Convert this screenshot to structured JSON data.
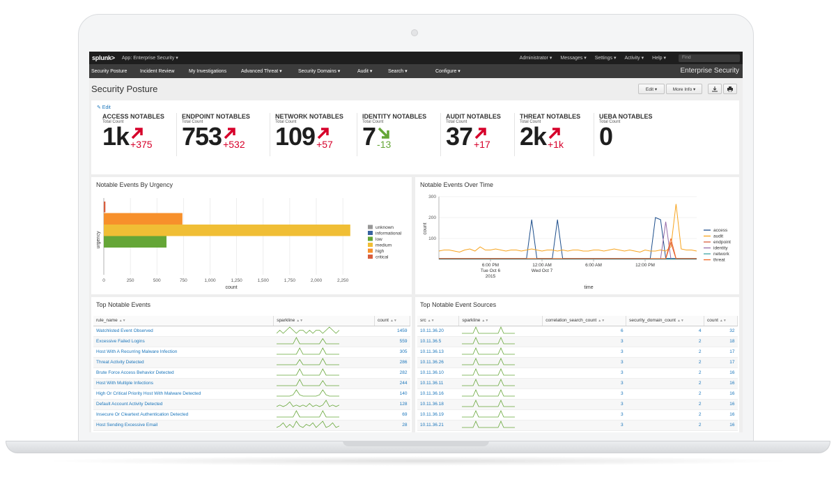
{
  "topbar": {
    "logo": "splunk>",
    "app": "App: Enterprise Security ▾",
    "menus": [
      "Administrator ▾",
      "Messages ▾",
      "Settings ▾",
      "Activity ▾",
      "Help ▾"
    ],
    "find_placeholder": "Find"
  },
  "nav": {
    "items": [
      "Security Posture",
      "Incident Review",
      "My Investigations",
      "Advanced Threat ▾",
      "Security Domains ▾",
      "Audit ▾",
      "Search ▾",
      "Configure ▾"
    ],
    "brand": "Enterprise Security"
  },
  "page": {
    "title": "Security Posture",
    "edit_btn": "Edit ▾",
    "more_btn": "More Info ▾",
    "download_icon": "download-icon",
    "print_icon": "print-icon"
  },
  "kpi_panel": {
    "edit_label": "✎ Edit",
    "items": [
      {
        "title": "ACCESS NOTABLES",
        "sub": "Total Count",
        "value": "1k",
        "delta": "+375",
        "trend": "up"
      },
      {
        "title": "ENDPOINT NOTABLES",
        "sub": "Total Count",
        "value": "753",
        "delta": "+532",
        "trend": "up"
      },
      {
        "title": "NETWORK NOTABLES",
        "sub": "Total Count",
        "value": "109",
        "delta": "+57",
        "trend": "up"
      },
      {
        "title": "IDENTITY NOTABLES",
        "sub": "Total Count",
        "value": "7",
        "delta": "-13",
        "trend": "down"
      },
      {
        "title": "AUDIT NOTABLES",
        "sub": "Total Count",
        "value": "37",
        "delta": "+17",
        "trend": "up"
      },
      {
        "title": "THREAT NOTABLES",
        "sub": "Total Count",
        "value": "2k",
        "delta": "+1k",
        "trend": "up"
      },
      {
        "title": "UEBA NOTABLES",
        "sub": "Total Count",
        "value": "0",
        "delta": "",
        "trend": "none"
      }
    ],
    "colors": {
      "up": "#d6002a",
      "down": "#65a637"
    }
  },
  "urgency_panel": {
    "title": "Notable Events By Urgency"
  },
  "time_panel": {
    "title": "Notable Events Over Time"
  },
  "chart_data": [
    {
      "type": "bar",
      "orientation": "horizontal",
      "xlabel": "count",
      "ylabel": "urgency",
      "xlim": [
        0,
        2400
      ],
      "xticks": [
        "0",
        "250",
        "500",
        "750",
        "1,000",
        "1,250",
        "1,500",
        "1,750",
        "2,000",
        "2,250"
      ],
      "grid": true,
      "legend_position": "right",
      "series": [
        {
          "name": "unknown",
          "color": "#979797",
          "value": 0
        },
        {
          "name": "informational",
          "color": "#3863a0",
          "value": 0
        },
        {
          "name": "low",
          "color": "#65a637",
          "value": 590
        },
        {
          "name": "medium",
          "color": "#f0be35",
          "value": 2320
        },
        {
          "name": "high",
          "color": "#f7902b",
          "value": 740
        },
        {
          "name": "critical",
          "color": "#d85e3d",
          "value": 15
        }
      ]
    },
    {
      "type": "line",
      "xlabel": "time",
      "ylabel": "count",
      "ylim": [
        0,
        300
      ],
      "yticks": [
        "100",
        "200",
        "300"
      ],
      "xticks": [
        {
          "label": "6:00 PM",
          "sub": "Tue Oct 6",
          "sub2": "2015",
          "x": 0.2
        },
        {
          "label": "12:00 AM",
          "sub": "Wed Oct 7",
          "sub2": "",
          "x": 0.4
        },
        {
          "label": "6:00 AM",
          "sub": "",
          "sub2": "",
          "x": 0.6
        },
        {
          "label": "12:00 PM",
          "sub": "",
          "sub2": "",
          "x": 0.8
        }
      ],
      "grid": true,
      "legend_position": "right",
      "x_positions": [
        0,
        0.02,
        0.04,
        0.06,
        0.08,
        0.1,
        0.12,
        0.14,
        0.16,
        0.18,
        0.2,
        0.22,
        0.24,
        0.26,
        0.28,
        0.3,
        0.32,
        0.34,
        0.36,
        0.38,
        0.4,
        0.42,
        0.44,
        0.46,
        0.48,
        0.5,
        0.52,
        0.54,
        0.56,
        0.58,
        0.6,
        0.62,
        0.64,
        0.66,
        0.68,
        0.7,
        0.72,
        0.74,
        0.76,
        0.78,
        0.8,
        0.82,
        0.84,
        0.86,
        0.88,
        0.9,
        0.92,
        0.94,
        0.96,
        0.98,
        1.0
      ],
      "series": [
        {
          "name": "access",
          "color": "#1e4f8c",
          "values": [
            5,
            5,
            5,
            5,
            5,
            5,
            5,
            5,
            5,
            5,
            5,
            5,
            5,
            5,
            5,
            5,
            5,
            5,
            190,
            5,
            5,
            5,
            5,
            190,
            5,
            5,
            5,
            5,
            5,
            5,
            5,
            5,
            5,
            5,
            5,
            5,
            5,
            5,
            5,
            5,
            5,
            5,
            200,
            190,
            5,
            5,
            5,
            5,
            5,
            5,
            5
          ]
        },
        {
          "name": "audit",
          "color": "#f7a31c",
          "values": [
            40,
            45,
            45,
            40,
            35,
            45,
            50,
            40,
            60,
            45,
            45,
            50,
            45,
            40,
            45,
            45,
            40,
            45,
            50,
            45,
            40,
            45,
            45,
            40,
            45,
            40,
            45,
            45,
            40,
            40,
            45,
            45,
            40,
            45,
            50,
            45,
            40,
            45,
            40,
            35,
            45,
            40,
            40,
            45,
            40,
            60,
            265,
            50,
            45,
            45,
            40
          ]
        },
        {
          "name": "endpoint",
          "color": "#d85e3d",
          "values": [
            2,
            2,
            2,
            2,
            2,
            2,
            2,
            2,
            2,
            2,
            2,
            2,
            2,
            2,
            2,
            2,
            2,
            2,
            2,
            2,
            2,
            2,
            2,
            2,
            2,
            2,
            2,
            2,
            2,
            2,
            2,
            2,
            2,
            2,
            2,
            2,
            2,
            2,
            2,
            2,
            2,
            2,
            2,
            2,
            2,
            80,
            2,
            2,
            2,
            2,
            2
          ]
        },
        {
          "name": "identity",
          "color": "#956ba8",
          "values": [
            3,
            3,
            3,
            3,
            3,
            3,
            3,
            3,
            3,
            3,
            3,
            3,
            3,
            3,
            3,
            3,
            3,
            3,
            3,
            3,
            3,
            3,
            3,
            3,
            3,
            3,
            3,
            3,
            3,
            3,
            3,
            3,
            3,
            3,
            3,
            3,
            3,
            3,
            3,
            3,
            3,
            3,
            3,
            3,
            180,
            3,
            3,
            3,
            3,
            3,
            3
          ]
        },
        {
          "name": "network",
          "color": "#3fa3a5",
          "values": [
            2,
            2,
            2,
            2,
            2,
            2,
            2,
            2,
            2,
            2,
            2,
            2,
            2,
            2,
            2,
            2,
            2,
            2,
            2,
            2,
            2,
            2,
            2,
            2,
            2,
            2,
            2,
            2,
            2,
            2,
            2,
            2,
            2,
            2,
            2,
            2,
            2,
            2,
            2,
            2,
            2,
            2,
            2,
            2,
            2,
            2,
            2,
            2,
            2,
            2,
            2
          ]
        },
        {
          "name": "threat",
          "color": "#f26522",
          "values": [
            4,
            4,
            4,
            4,
            4,
            4,
            4,
            4,
            4,
            4,
            4,
            4,
            4,
            4,
            4,
            4,
            4,
            4,
            4,
            4,
            4,
            4,
            4,
            4,
            4,
            4,
            4,
            4,
            4,
            4,
            4,
            4,
            4,
            4,
            4,
            4,
            4,
            4,
            4,
            4,
            4,
            4,
            4,
            4,
            4,
            100,
            4,
            4,
            4,
            4,
            4
          ]
        }
      ]
    }
  ],
  "top_events": {
    "title": "Top Notable Events",
    "columns": [
      "rule_name",
      "sparkline",
      "count"
    ],
    "rows": [
      {
        "name": "Watchlisted Event Observed",
        "count": "1459",
        "spark": [
          3,
          4,
          3,
          4,
          5,
          4,
          3,
          4,
          4,
          3,
          4,
          3,
          4,
          4,
          3,
          4,
          5,
          4,
          3,
          4
        ]
      },
      {
        "name": "Excessive Failed Logins",
        "count": "559",
        "spark": [
          1,
          1,
          1,
          1,
          1,
          1,
          7,
          1,
          1,
          1,
          1,
          1,
          1,
          1,
          6,
          1,
          1,
          1,
          1,
          1
        ]
      },
      {
        "name": "Host With A Recurring Malware Infection",
        "count": "305",
        "spark": [
          1,
          1,
          1,
          1,
          1,
          1,
          1,
          6,
          1,
          1,
          1,
          1,
          1,
          1,
          6,
          1,
          1,
          1,
          1,
          1
        ]
      },
      {
        "name": "Threat Activity Detected",
        "count": "286",
        "spark": [
          1,
          1,
          1,
          1,
          1,
          1,
          1,
          6,
          1,
          1,
          1,
          1,
          1,
          1,
          7,
          1,
          1,
          1,
          1,
          1
        ]
      },
      {
        "name": "Brute Force Access Behavior Detected",
        "count": "282",
        "spark": [
          1,
          1,
          1,
          1,
          1,
          1,
          1,
          5,
          1,
          1,
          1,
          1,
          1,
          1,
          5,
          1,
          1,
          1,
          1,
          1
        ]
      },
      {
        "name": "Host With Multiple Infections",
        "count": "244",
        "spark": [
          1,
          1,
          1,
          1,
          1,
          1,
          1,
          6,
          1,
          1,
          1,
          1,
          1,
          1,
          5,
          1,
          1,
          1,
          1,
          1
        ]
      },
      {
        "name": "High Or Critical Priority Host With Malware Detected",
        "count": "140",
        "spark": [
          1,
          1,
          1,
          1,
          1,
          2,
          6,
          2,
          1,
          1,
          1,
          1,
          1,
          2,
          6,
          2,
          1,
          1,
          1,
          1
        ]
      },
      {
        "name": "Default Account Activity Detected",
        "count": "128",
        "spark": [
          1,
          2,
          1,
          2,
          4,
          1,
          2,
          1,
          2,
          1,
          3,
          1,
          2,
          1,
          2,
          5,
          1,
          2,
          1,
          2
        ]
      },
      {
        "name": "Insecure Or Cleartext Authentication Detected",
        "count": "69",
        "spark": [
          1,
          1,
          1,
          1,
          1,
          1,
          5,
          1,
          1,
          1,
          1,
          1,
          1,
          1,
          5,
          1,
          1,
          1,
          1,
          1
        ]
      },
      {
        "name": "Host Sending Excessive Email",
        "count": "28",
        "spark": [
          2,
          3,
          5,
          2,
          4,
          2,
          6,
          3,
          2,
          4,
          3,
          5,
          2,
          4,
          6,
          2,
          3,
          5,
          2,
          3
        ]
      }
    ]
  },
  "top_sources": {
    "title": "Top Notable Event Sources",
    "columns": [
      "src",
      "sparkline",
      "correlation_search_count",
      "security_domain_count",
      "count"
    ],
    "rows": [
      {
        "src": "10.11.36.20",
        "csc": "6",
        "sdc": "4",
        "count": "32",
        "spark": [
          1,
          1,
          1,
          1,
          1,
          6,
          1,
          1,
          1,
          1,
          1,
          1,
          1,
          1,
          6,
          1,
          1,
          1,
          1,
          1
        ]
      },
      {
        "src": "10.11.36.5",
        "csc": "3",
        "sdc": "2",
        "count": "18",
        "spark": [
          1,
          1,
          1,
          1,
          1,
          6,
          1,
          1,
          1,
          1,
          1,
          1,
          1,
          1,
          6,
          1,
          1,
          1,
          1,
          1
        ]
      },
      {
        "src": "10.11.36.13",
        "csc": "3",
        "sdc": "2",
        "count": "17",
        "spark": [
          1,
          1,
          1,
          1,
          1,
          6,
          1,
          1,
          1,
          1,
          1,
          1,
          1,
          1,
          6,
          1,
          1,
          1,
          1,
          1
        ]
      },
      {
        "src": "10.11.36.26",
        "csc": "3",
        "sdc": "2",
        "count": "17",
        "spark": [
          1,
          1,
          1,
          1,
          1,
          6,
          1,
          1,
          1,
          1,
          1,
          1,
          1,
          1,
          6,
          1,
          1,
          1,
          1,
          1
        ]
      },
      {
        "src": "10.11.36.10",
        "csc": "3",
        "sdc": "2",
        "count": "16",
        "spark": [
          1,
          1,
          1,
          1,
          1,
          6,
          1,
          1,
          1,
          1,
          1,
          1,
          1,
          1,
          6,
          1,
          1,
          1,
          1,
          1
        ]
      },
      {
        "src": "10.11.36.11",
        "csc": "3",
        "sdc": "2",
        "count": "16",
        "spark": [
          1,
          1,
          1,
          1,
          1,
          6,
          1,
          1,
          1,
          1,
          1,
          1,
          1,
          1,
          6,
          1,
          1,
          1,
          1,
          1
        ]
      },
      {
        "src": "10.11.36.16",
        "csc": "3",
        "sdc": "2",
        "count": "16",
        "spark": [
          1,
          1,
          1,
          1,
          1,
          6,
          1,
          1,
          1,
          1,
          1,
          1,
          1,
          1,
          6,
          1,
          1,
          1,
          1,
          1
        ]
      },
      {
        "src": "10.11.36.18",
        "csc": "3",
        "sdc": "2",
        "count": "16",
        "spark": [
          1,
          1,
          1,
          1,
          1,
          6,
          1,
          1,
          1,
          1,
          1,
          1,
          1,
          1,
          6,
          1,
          1,
          1,
          1,
          1
        ]
      },
      {
        "src": "10.11.36.19",
        "csc": "3",
        "sdc": "2",
        "count": "16",
        "spark": [
          1,
          1,
          1,
          1,
          1,
          6,
          1,
          1,
          1,
          1,
          1,
          1,
          1,
          1,
          6,
          1,
          1,
          1,
          1,
          1
        ]
      },
      {
        "src": "10.11.36.21",
        "csc": "3",
        "sdc": "2",
        "count": "16",
        "spark": [
          1,
          1,
          1,
          1,
          1,
          6,
          1,
          1,
          1,
          1,
          1,
          1,
          1,
          1,
          6,
          1,
          1,
          1,
          1,
          1
        ]
      }
    ]
  },
  "spark_color": "#65a637"
}
